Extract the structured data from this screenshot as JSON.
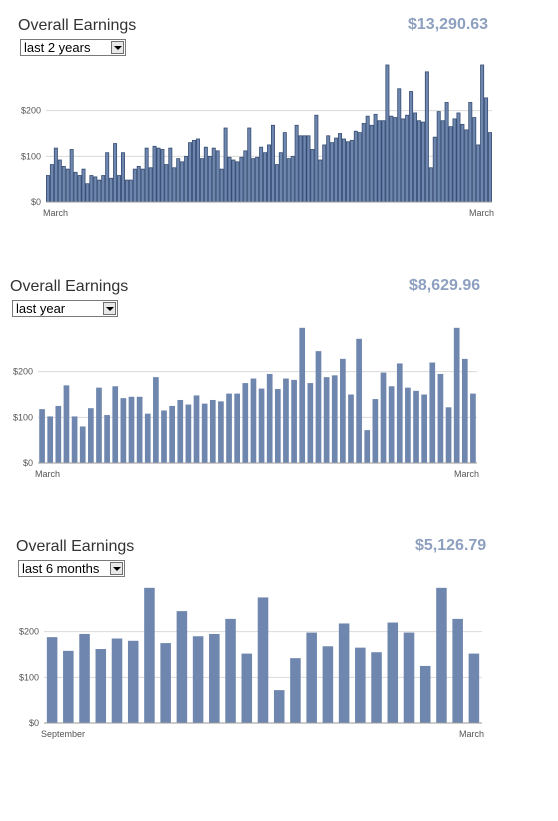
{
  "colors": {
    "bar": "#6f87ae",
    "bar_stroke": "#354d73",
    "title_total": "#8ea0c0",
    "grid": "#d9d9d9"
  },
  "panels": [
    {
      "title": "Overall Earnings",
      "total": "$13,290.63",
      "period": "last 2 years",
      "chart_data": {
        "type": "bar",
        "y_ticks": [
          "$0",
          "$100",
          "$200"
        ],
        "x_labels": [
          "March",
          "March"
        ],
        "ylim": [
          0,
          300
        ],
        "values": [
          58,
          82,
          118,
          92,
          78,
          72,
          115,
          65,
          58,
          72,
          40,
          58,
          55,
          48,
          58,
          108,
          52,
          128,
          58,
          108,
          48,
          48,
          72,
          78,
          72,
          118,
          75,
          122,
          118,
          115,
          82,
          118,
          75,
          95,
          88,
          100,
          130,
          135,
          138,
          95,
          120,
          100,
          118,
          112,
          72,
          162,
          98,
          92,
          88,
          98,
          112,
          162,
          95,
          98,
          120,
          108,
          125,
          168,
          82,
          108,
          152,
          95,
          100,
          168,
          145,
          145,
          145,
          115,
          190,
          92,
          125,
          145,
          130,
          140,
          150,
          138,
          132,
          135,
          155,
          152,
          172,
          188,
          168,
          192,
          178,
          178,
          300,
          188,
          185,
          248,
          182,
          190,
          242,
          195,
          178,
          175,
          285,
          75,
          142,
          198,
          178,
          218,
          165,
          182,
          195,
          170,
          158,
          218,
          185,
          125,
          300,
          228,
          152
        ]
      }
    },
    {
      "title": "Overall Earnings",
      "total": "$8,629.96",
      "period": "last year",
      "chart_data": {
        "type": "bar",
        "y_ticks": [
          "$0",
          "$100",
          "$200"
        ],
        "x_labels": [
          "March",
          "March"
        ],
        "ylim": [
          0,
          300
        ],
        "values": [
          118,
          102,
          125,
          170,
          102,
          80,
          120,
          165,
          105,
          168,
          142,
          145,
          145,
          108,
          188,
          115,
          125,
          138,
          128,
          148,
          130,
          138,
          135,
          152,
          152,
          175,
          185,
          163,
          195,
          162,
          185,
          182,
          296,
          175,
          245,
          188,
          192,
          228,
          150,
          272,
          72,
          140,
          198,
          168,
          218,
          165,
          158,
          150,
          220,
          195,
          122,
          296,
          228,
          152
        ]
      }
    },
    {
      "title": "Overall Earnings",
      "total": "$5,126.79",
      "period": "last 6 months",
      "chart_data": {
        "type": "bar",
        "y_ticks": [
          "$0",
          "$100",
          "$200"
        ],
        "x_labels": [
          "September",
          "March"
        ],
        "ylim": [
          0,
          300
        ],
        "values": [
          188,
          158,
          195,
          162,
          185,
          180,
          296,
          175,
          245,
          190,
          195,
          228,
          152,
          275,
          72,
          142,
          198,
          168,
          218,
          165,
          155,
          220,
          198,
          125,
          296,
          228,
          152
        ]
      }
    }
  ]
}
